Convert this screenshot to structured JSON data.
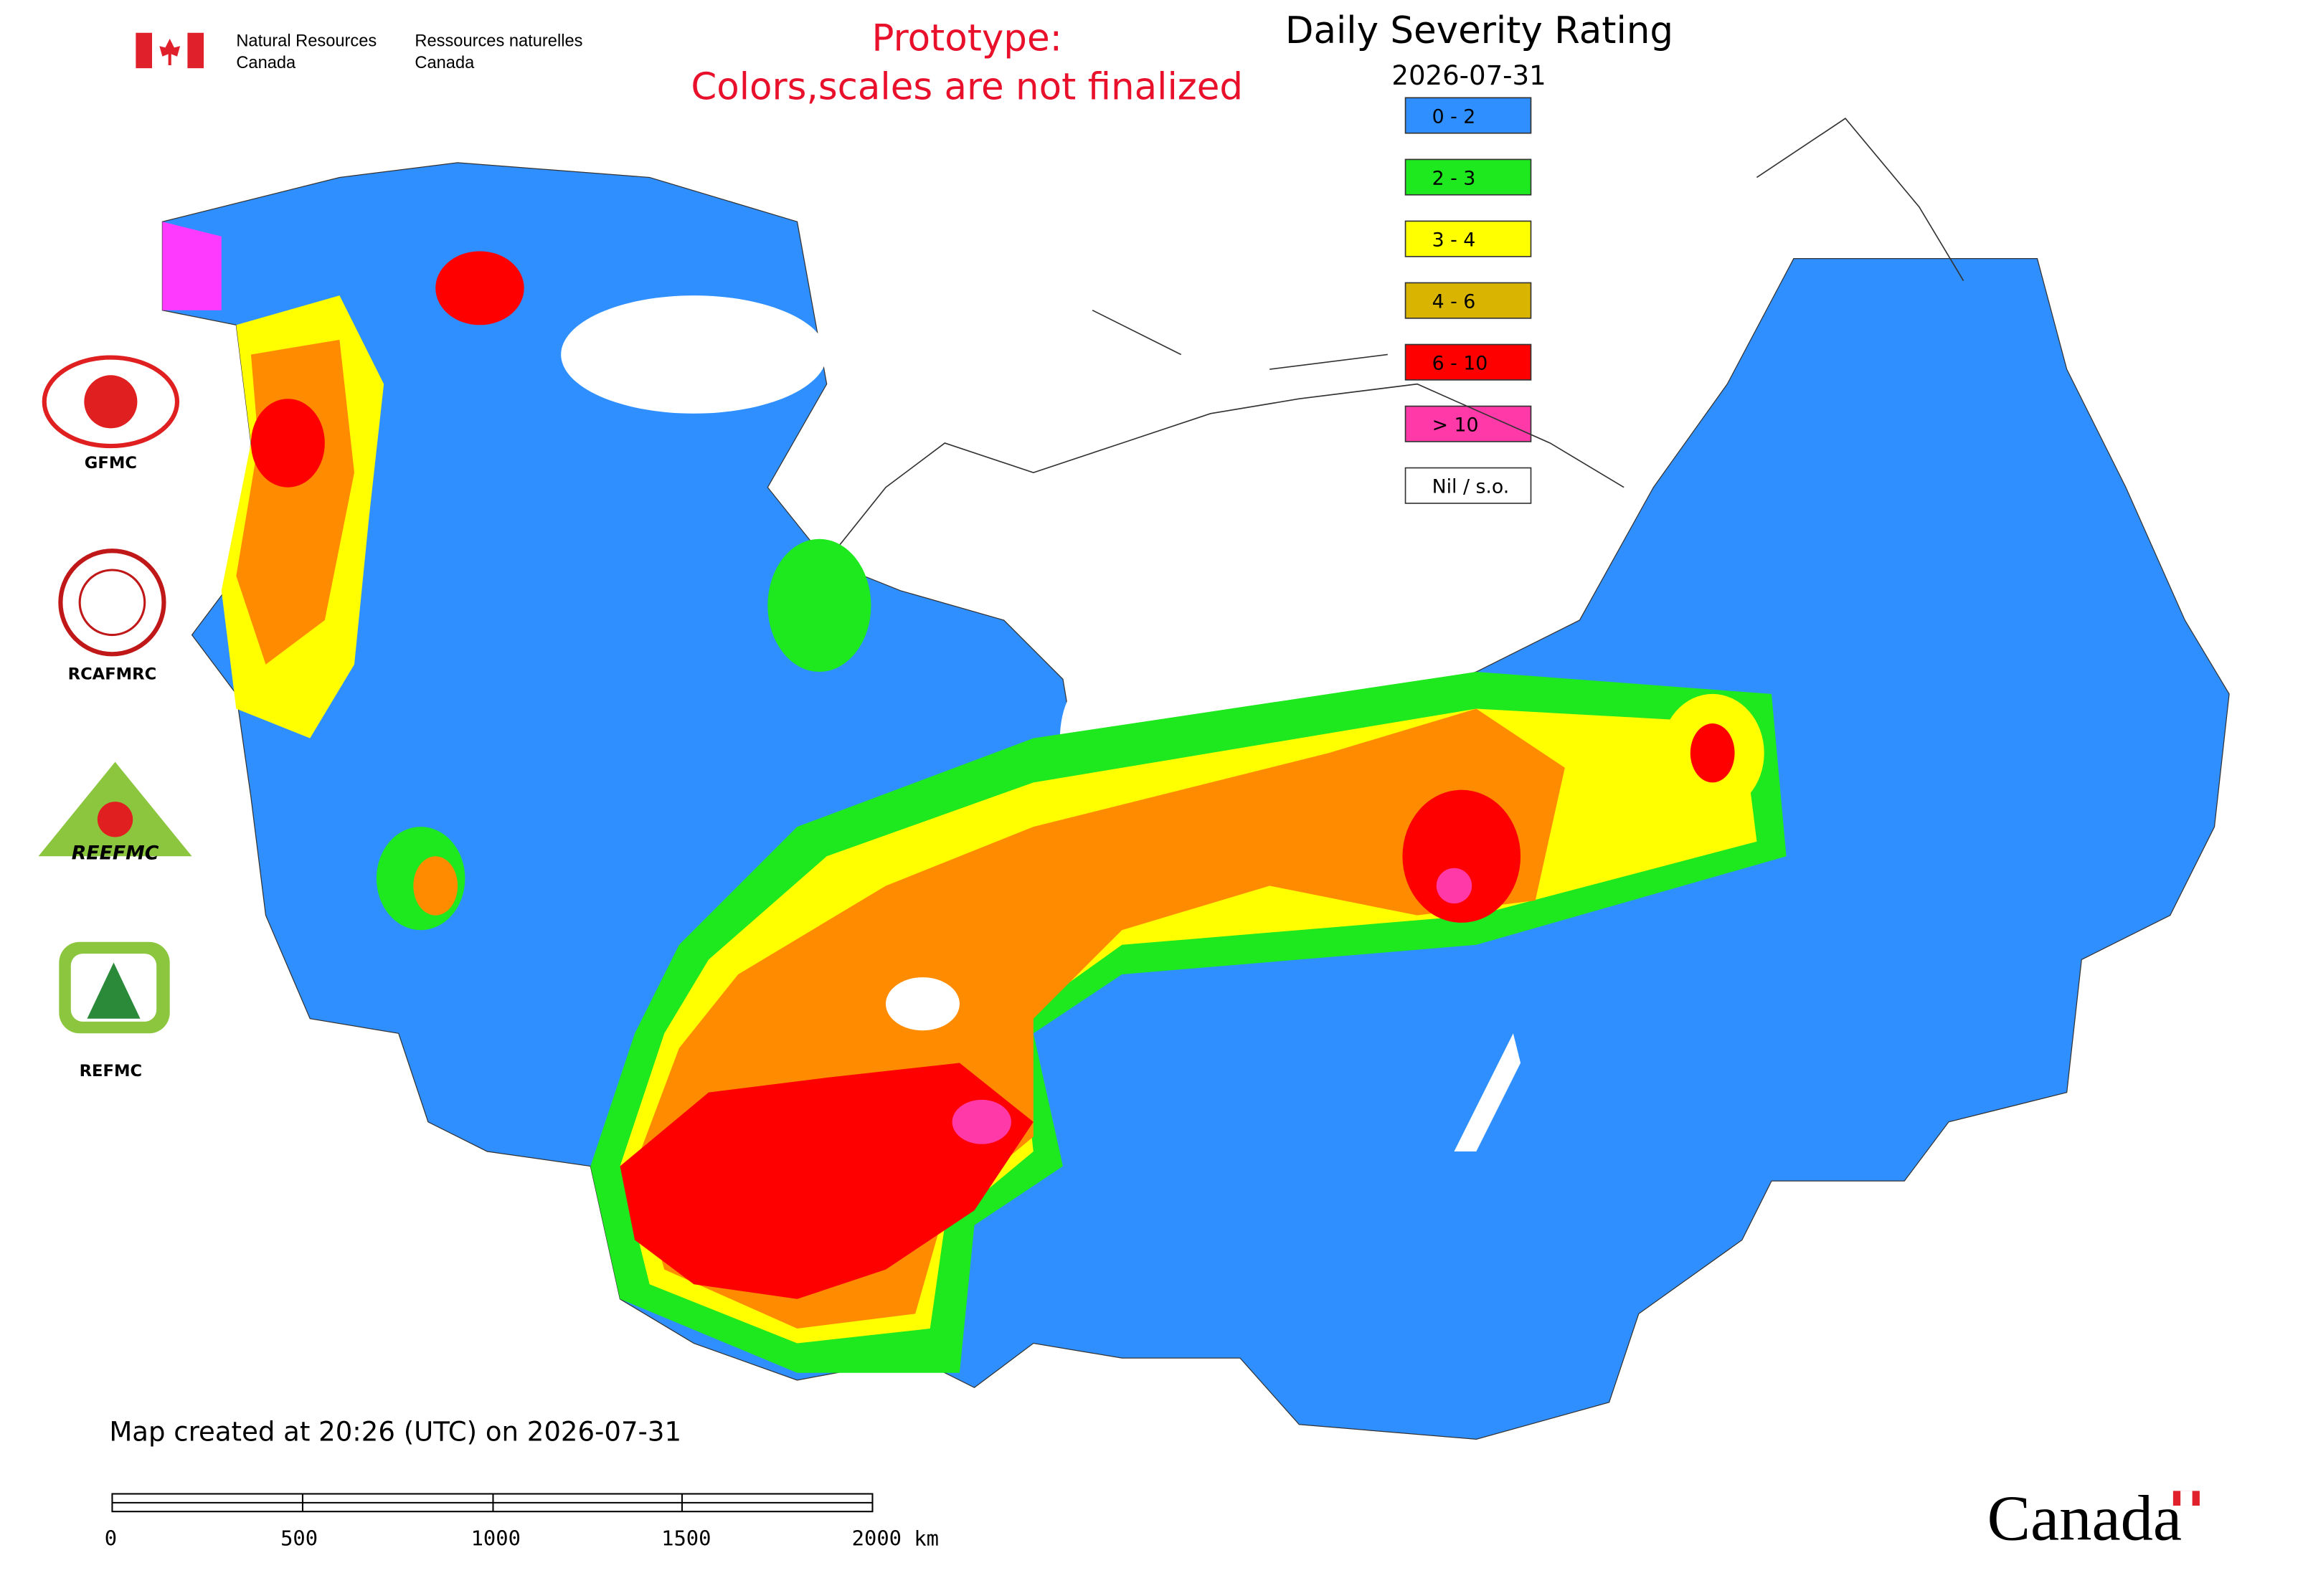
{
  "header": {
    "org_en": [
      "Natural Resources",
      "Canada"
    ],
    "org_fr": [
      "Ressources naturelles",
      "Canada"
    ],
    "notice": [
      "Prototype:",
      "Colors,scales are not finalized"
    ]
  },
  "legend": {
    "title": "Daily Severity Rating",
    "date": "2026-07-31",
    "items": [
      {
        "label": "0 - 2",
        "color": "#2f8fff"
      },
      {
        "label": "2 - 3",
        "color": "#1ee81e"
      },
      {
        "label": "3 - 4",
        "color": "#ffff00"
      },
      {
        "label": "4 - 6",
        "color": "#d9b400"
      },
      {
        "label": "6 - 10",
        "color": "#ff0000"
      },
      {
        "label": "> 10",
        "color": "#ff3aa8"
      },
      {
        "label": "Nil / s.o.",
        "color": "#ffffff"
      }
    ]
  },
  "logos": [
    "GFMC",
    "RCAFMRC",
    "REEFMC",
    "REFMC"
  ],
  "footer": {
    "created": "Map created at 20:26 (UTC) on 2026-07-31",
    "scale_labels": [
      "0",
      "500",
      "1000",
      "1500",
      "2000 km"
    ],
    "wordmark": "Canada"
  }
}
